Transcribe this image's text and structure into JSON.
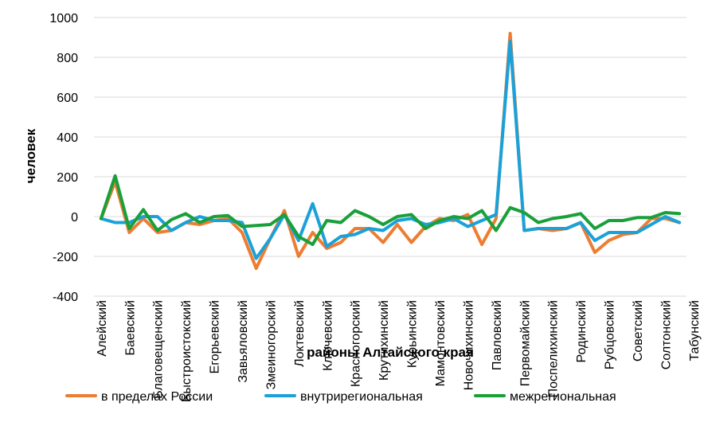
{
  "chart_data": {
    "type": "line",
    "title": "",
    "xlabel": "районы Алтайского края",
    "ylabel": "человек",
    "ylim": [
      -400,
      1000
    ],
    "yticks": [
      -400,
      -200,
      0,
      200,
      400,
      600,
      800,
      1000
    ],
    "grid": "horizontal",
    "legend_position": "bottom",
    "x_labels": [
      "Алейский",
      "Баевский",
      "Благовещенский",
      "Быстроистокский",
      "Егорьевский",
      "Завьяловский",
      "Змеиногорский",
      "Локтевский",
      "Ключевский",
      "Красногорский",
      "Крутихинский",
      "Курьинский",
      "Мамонтовский",
      "Новочихинский",
      "Павловский",
      "Первомайский",
      "Поспелихинский",
      "Родинский",
      "Рубцовский",
      "Советский",
      "Солтонский",
      "Табунский"
    ],
    "x_label_positions": [
      0,
      2,
      4,
      6,
      8,
      10,
      12,
      14,
      16,
      18,
      20,
      22,
      24,
      26,
      28,
      30,
      32,
      34,
      36,
      38,
      40,
      42
    ],
    "series": [
      {
        "name": "в пределах России",
        "color": "#ED7D31",
        "values": [
          -10,
          175,
          -80,
          -10,
          -80,
          -70,
          -30,
          -40,
          -20,
          -10,
          -80,
          -260,
          -110,
          30,
          -200,
          -80,
          -160,
          -130,
          -60,
          -60,
          -130,
          -40,
          -130,
          -50,
          -10,
          -20,
          10,
          -140,
          -10,
          920,
          -70,
          -60,
          -70,
          -60,
          -30,
          -180,
          -120,
          -90,
          -80,
          -10,
          -10,
          -30
        ]
      },
      {
        "name": "внутрирегиональная",
        "color": "#1BA1D9",
        "values": [
          -10,
          -30,
          -30,
          0,
          0,
          -70,
          -30,
          0,
          -20,
          -20,
          -30,
          -210,
          -110,
          10,
          -120,
          65,
          -150,
          -100,
          -90,
          -60,
          -70,
          -20,
          -10,
          -40,
          -30,
          -10,
          -50,
          -20,
          10,
          880,
          -70,
          -60,
          -60,
          -60,
          -30,
          -120,
          -80,
          -80,
          -80,
          -40,
          0,
          -30
        ]
      },
      {
        "name": "межрегиональная",
        "color": "#19A03A",
        "values": [
          -10,
          205,
          -60,
          35,
          -70,
          -15,
          15,
          -30,
          0,
          5,
          -50,
          -45,
          -40,
          10,
          -100,
          -140,
          -20,
          -30,
          30,
          0,
          -40,
          0,
          10,
          -60,
          -20,
          0,
          -10,
          30,
          -70,
          45,
          20,
          -30,
          -10,
          0,
          15,
          -60,
          -20,
          -20,
          -5,
          -5,
          20,
          15
        ]
      }
    ]
  }
}
